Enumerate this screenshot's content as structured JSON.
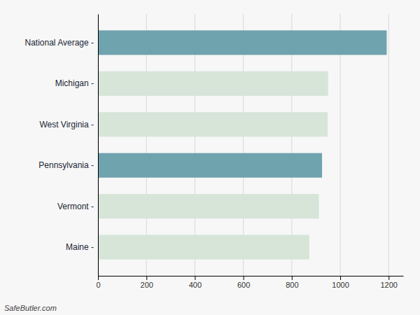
{
  "chart_data": {
    "type": "bar",
    "orientation": "horizontal",
    "categories": [
      "National Average -",
      "Michigan -",
      "West Virginia -",
      "Pennsylvania -",
      "Vermont -",
      "Maine -"
    ],
    "values": [
      1192,
      950,
      948,
      925,
      912,
      872
    ],
    "colors": [
      "#6fa3ae",
      "#d6e5d8",
      "#d6e5d8",
      "#6fa3ae",
      "#d6e5d8",
      "#d6e5d8"
    ],
    "xlim": [
      0,
      1260
    ],
    "xticks": [
      0,
      200,
      400,
      600,
      800,
      1000,
      1200
    ],
    "grid": true,
    "annotations": [
      "SafeButler.com"
    ]
  }
}
